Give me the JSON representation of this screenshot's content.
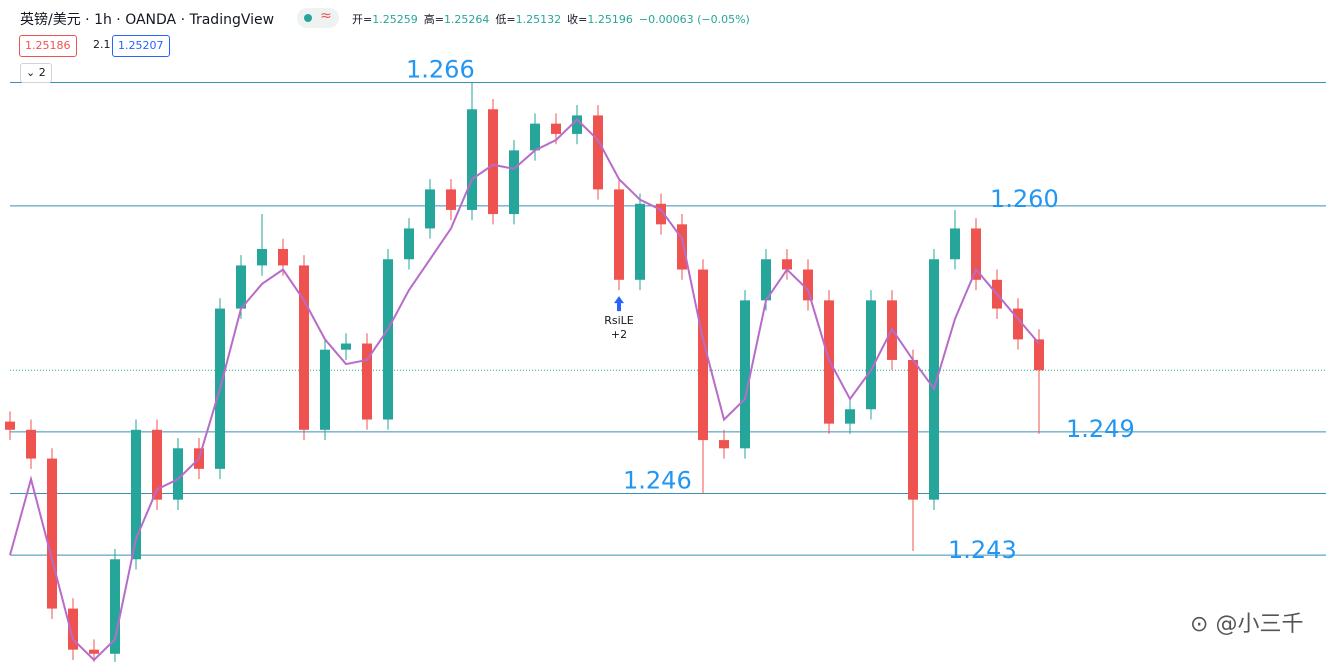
{
  "header": {
    "symbol": "英镑/美元 · 1h · OANDA · TradingView",
    "ohlc": [
      {
        "key": "开=",
        "value": 1.25259
      },
      {
        "key": "高=",
        "value": 1.25264
      },
      {
        "key": "低=",
        "value": 1.25132
      },
      {
        "key": "收=",
        "value": 1.25196
      }
    ],
    "change": "−0.00063 (−0.05%)",
    "bid": 1.25186,
    "spread": 2.1,
    "ask": 1.25207,
    "collapse": 2
  },
  "watermark": "@小三千",
  "chart_data": {
    "type": "candlestick",
    "up_color": "#26a69a",
    "down_color": "#ef5350",
    "ylim": [
      1.2378,
      1.267
    ],
    "open": [
      1.2495,
      1.2491,
      1.2477,
      1.2404,
      1.2384,
      1.2382,
      1.2428,
      1.2491,
      1.2457,
      1.2482,
      1.2472,
      1.255,
      1.2571,
      1.2579,
      1.2571,
      1.2491,
      1.253,
      1.2533,
      1.2496,
      1.2574,
      1.2589,
      1.2608,
      1.2598,
      1.2647,
      1.2596,
      1.2627,
      1.264,
      1.2635,
      1.2644,
      1.2608,
      1.2564,
      1.2601,
      1.2591,
      1.2569,
      1.2486,
      1.2482,
      1.2554,
      1.2574,
      1.2569,
      1.2554,
      1.2494,
      1.2501,
      1.2554,
      1.2525,
      1.2457,
      1.2574,
      1.2589,
      1.2564,
      1.255,
      1.2535
    ],
    "high": [
      1.25,
      1.2496,
      1.2482,
      1.2409,
      1.2389,
      1.2433,
      1.2496,
      1.2496,
      1.2487,
      1.2487,
      1.2555,
      1.2576,
      1.2596,
      1.2584,
      1.2576,
      1.2535,
      1.2538,
      1.2538,
      1.2579,
      1.2594,
      1.2613,
      1.2613,
      1.266,
      1.2652,
      1.2632,
      1.2645,
      1.2645,
      1.2649,
      1.2649,
      1.2613,
      1.2606,
      1.2606,
      1.2596,
      1.2574,
      1.2491,
      1.2559,
      1.2579,
      1.2579,
      1.2574,
      1.2559,
      1.2506,
      1.2559,
      1.2559,
      1.253,
      1.2579,
      1.2598,
      1.2594,
      1.2569,
      1.2555,
      1.254
    ],
    "low": [
      1.2486,
      1.2472,
      1.2399,
      1.2379,
      1.2378,
      1.2378,
      1.2423,
      1.2452,
      1.2452,
      1.2467,
      1.2467,
      1.2545,
      1.2566,
      1.2566,
      1.2486,
      1.2486,
      1.2525,
      1.2491,
      1.2491,
      1.2569,
      1.2584,
      1.2593,
      1.2593,
      1.2591,
      1.2591,
      1.2622,
      1.263,
      1.263,
      1.2603,
      1.2559,
      1.2559,
      1.2586,
      1.2564,
      1.246,
      1.2477,
      1.2477,
      1.2549,
      1.2564,
      1.2549,
      1.2489,
      1.2489,
      1.2496,
      1.252,
      1.2432,
      1.2452,
      1.2569,
      1.2559,
      1.2545,
      1.253,
      1.2489
    ],
    "close": [
      1.2491,
      1.2477,
      1.2404,
      1.2384,
      1.2382,
      1.2428,
      1.2491,
      1.2457,
      1.2482,
      1.2472,
      1.255,
      1.2571,
      1.2579,
      1.2571,
      1.2491,
      1.253,
      1.2533,
      1.2496,
      1.2574,
      1.2589,
      1.2608,
      1.2598,
      1.2647,
      1.2596,
      1.2627,
      1.264,
      1.2635,
      1.2644,
      1.2608,
      1.2564,
      1.2601,
      1.2591,
      1.2569,
      1.2486,
      1.2482,
      1.2554,
      1.2574,
      1.2569,
      1.2554,
      1.2494,
      1.2501,
      1.2554,
      1.2525,
      1.2457,
      1.2574,
      1.2589,
      1.2564,
      1.255,
      1.2535,
      1.252
    ],
    "ma": {
      "color": "#b86bc9",
      "values": [
        1.243,
        1.2467,
        1.2428,
        1.2389,
        1.2379,
        1.2389,
        1.2438,
        1.2462,
        1.2467,
        1.2477,
        1.2511,
        1.255,
        1.2562,
        1.2569,
        1.2554,
        1.2535,
        1.2523,
        1.2525,
        1.254,
        1.2559,
        1.2574,
        1.2589,
        1.2613,
        1.262,
        1.2618,
        1.2627,
        1.2632,
        1.2642,
        1.2632,
        1.2613,
        1.2603,
        1.2598,
        1.2584,
        1.2535,
        1.2496,
        1.2506,
        1.2554,
        1.2569,
        1.2559,
        1.2525,
        1.2506,
        1.252,
        1.254,
        1.2525,
        1.2511,
        1.2545,
        1.2569,
        1.2557,
        1.2545,
        1.2533
      ]
    },
    "levels": [
      1.266,
      {
        "value": 1.26,
        "label": "1.260"
      },
      1.249,
      1.246,
      1.243
    ],
    "level_color": "#3a8fb7",
    "level_label_color": "#2196f3",
    "annotation": {
      "text": "RsiLE",
      "count": "+2"
    }
  }
}
